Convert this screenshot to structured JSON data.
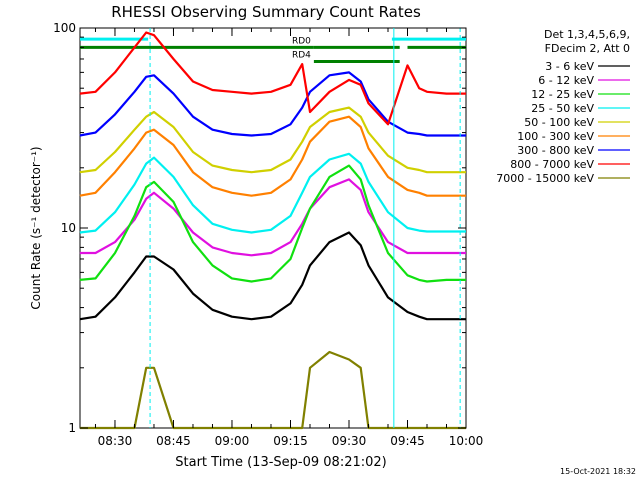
{
  "chart_data": {
    "type": "line",
    "title": "RHESSI Observing Summary Count Rates",
    "ylabel": "Count Rate (s⁻¹ detector⁻¹)",
    "xlabel": "Start Time (13-Sep-09 08:21:02)",
    "footer": "15-Oct-2021 18:32",
    "yscale": "log",
    "ylim": [
      1,
      100
    ],
    "xlim": [
      "08:21:02",
      "10:00:00"
    ],
    "x_ticks": [
      "08:30",
      "08:45",
      "09:00",
      "09:15",
      "09:30",
      "09:45",
      "10:00"
    ],
    "y_ticks": [
      "1",
      "10",
      "100"
    ],
    "legend_title": [
      "Det 1,3,4,5,6,9,",
      "FDecim 2, Att 0"
    ],
    "legend_position": "right",
    "x_minutes_from_0800": [
      21.0,
      25,
      30,
      35,
      38,
      40,
      45,
      50,
      55,
      60,
      65,
      70,
      75,
      78,
      80,
      85,
      90,
      93,
      95,
      100,
      105,
      108,
      110,
      115,
      120
    ],
    "series": [
      {
        "name": "3 - 6 keV",
        "color": "#000000",
        "values": [
          3.5,
          3.6,
          4.5,
          6.0,
          7.2,
          7.2,
          6.2,
          4.7,
          3.9,
          3.6,
          3.5,
          3.6,
          4.2,
          5.2,
          6.5,
          8.5,
          9.5,
          8.2,
          6.5,
          4.5,
          3.8,
          3.6,
          3.5,
          3.5,
          3.5
        ]
      },
      {
        "name": "6 - 12 keV",
        "color": "#e010e0",
        "values": [
          7.5,
          7.5,
          8.5,
          11.0,
          14.0,
          15.0,
          12.5,
          9.5,
          8.0,
          7.5,
          7.3,
          7.5,
          8.5,
          10.5,
          12.5,
          16.0,
          17.5,
          15.5,
          12.0,
          8.5,
          7.5,
          7.5,
          7.5,
          7.5,
          7.5
        ]
      },
      {
        "name": "12 - 25 keV",
        "color": "#10e010",
        "values": [
          5.5,
          5.6,
          7.5,
          11.5,
          16.0,
          17.0,
          13.5,
          8.5,
          6.5,
          5.6,
          5.4,
          5.6,
          7.0,
          10.0,
          12.5,
          18.0,
          20.5,
          17.5,
          13.0,
          7.5,
          5.8,
          5.5,
          5.4,
          5.5,
          5.5
        ]
      },
      {
        "name": "25 - 50 keV",
        "color": "#00f0f0",
        "values": [
          9.5,
          9.7,
          12.0,
          16.5,
          21.0,
          22.5,
          18.0,
          13.0,
          10.5,
          9.8,
          9.5,
          9.8,
          11.5,
          15.0,
          18.0,
          22.0,
          23.5,
          21.0,
          17.0,
          12.0,
          10.0,
          9.7,
          9.6,
          9.6,
          9.6
        ]
      },
      {
        "name": "50 - 100 keV",
        "color": "#d0d000",
        "values": [
          19.0,
          19.5,
          24.0,
          31.0,
          36.0,
          38.0,
          32.0,
          24.0,
          20.5,
          19.5,
          19.0,
          19.5,
          22.0,
          27.0,
          32.0,
          38.0,
          40.0,
          36.0,
          30.0,
          23.0,
          20.0,
          19.5,
          19.0,
          19.0,
          19.0
        ]
      },
      {
        "name": "100 - 300 keV",
        "color": "#ff8000",
        "values": [
          14.5,
          15.0,
          19.0,
          25.0,
          30.0,
          31.0,
          26.0,
          19.0,
          16.0,
          15.0,
          14.5,
          15.0,
          17.5,
          22.0,
          27.0,
          34.0,
          36.0,
          32.0,
          25.0,
          18.0,
          15.5,
          15.0,
          14.5,
          14.5,
          14.5
        ]
      },
      {
        "name": "300 - 800 keV",
        "color": "#0000ff",
        "values": [
          29.0,
          30.0,
          37.0,
          48.0,
          57.0,
          58.0,
          47.0,
          36.0,
          31.0,
          29.5,
          29.0,
          29.5,
          33.0,
          40.0,
          48.0,
          58.0,
          60.0,
          54.0,
          44.0,
          34.0,
          30.0,
          29.5,
          29.0,
          29.0,
          29.0
        ]
      },
      {
        "name": "800 - 7000 keV",
        "color": "#ff0000",
        "values": [
          47.0,
          48.0,
          60.0,
          80.0,
          95.0,
          92.0,
          70.0,
          54.0,
          49.0,
          48.0,
          47.0,
          48.0,
          52.0,
          66.0,
          38.0,
          48.0,
          55.0,
          52.0,
          42.0,
          33.0,
          65.0,
          50.0,
          48.0,
          47.0,
          47.0
        ]
      },
      {
        "name": "7000 - 15000 keV",
        "color": "#808000",
        "values": [
          1.0,
          1.0,
          1.0,
          1.0,
          2.0,
          2.0,
          1.0,
          1.0,
          1.0,
          1.0,
          1.0,
          1.0,
          1.0,
          1.0,
          2.0,
          2.4,
          2.2,
          2.0,
          1.0,
          1.0,
          1.0,
          1.0,
          1.0,
          1.0,
          1.0
        ]
      }
    ],
    "status_bars": [
      {
        "label": "",
        "color": "#00f0f0",
        "y_value": 88,
        "start": "08:21:02",
        "end": "08:38:30"
      },
      {
        "label": "",
        "color": "#00f0f0",
        "y_value": 88,
        "start": "09:41:00",
        "end": "10:00:00"
      },
      {
        "label": "",
        "color": "#008000",
        "y_value": 80,
        "start": "08:21:02",
        "end": "09:21:00"
      },
      {
        "label": "RD4",
        "color": "#008000",
        "y_value": 68,
        "start": "09:21:00",
        "end": "09:43:00"
      },
      {
        "label": "RD0",
        "color": "#008000",
        "y_value": 80,
        "start": "09:21:00",
        "end": "09:43:00"
      },
      {
        "label": "",
        "color": "#008000",
        "y_value": 80,
        "start": "09:45:00",
        "end": "10:00:00"
      }
    ],
    "vertical_markers": [
      {
        "time": "08:39:00",
        "style": "dashed",
        "color": "#00f0f0"
      },
      {
        "time": "09:41:30",
        "style": "solid",
        "color": "#00f0f0"
      },
      {
        "time": "09:58:30",
        "style": "dashed",
        "color": "#00f0f0"
      }
    ]
  }
}
